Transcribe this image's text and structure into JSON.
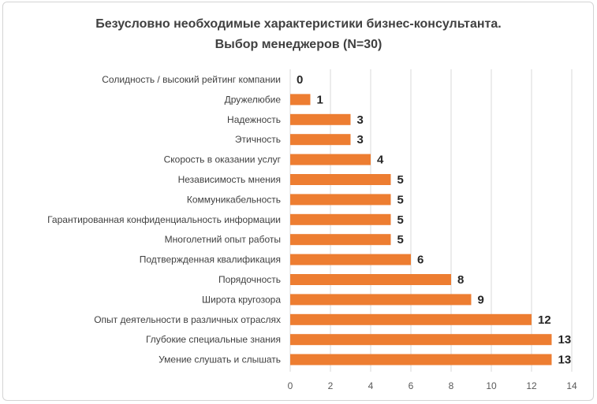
{
  "chart_data": {
    "type": "bar",
    "orientation": "horizontal",
    "title": [
      "Безусловно необходимые характеристики бизнес-консультанта.",
      "Выбор менеджеров (N=30)"
    ],
    "categories": [
      "Солидность / высокий рейтинг компании",
      "Дружелюбие",
      "Надежность",
      "Этичность",
      "Скорость в оказании услуг",
      "Независимость мнения",
      "Коммуникабельность",
      "Гарантированная конфиденциальность информации",
      "Многолетний опыт работы",
      "Подтвержденная квалификация",
      "Порядочность",
      "Широта кругозора",
      "Опыт деятельности в различных отраслях",
      "Глубокие специальные знания",
      "Умение слушать и слышать"
    ],
    "values": [
      0,
      1,
      3,
      3,
      4,
      5,
      5,
      5,
      5,
      6,
      8,
      9,
      12,
      13,
      13
    ],
    "xlim": [
      0,
      14
    ],
    "xticks": [
      0,
      2,
      4,
      6,
      8,
      10,
      12,
      14
    ],
    "grid": true,
    "bar_color": "#ED7D31",
    "grid_color": "#D9D9D9"
  }
}
